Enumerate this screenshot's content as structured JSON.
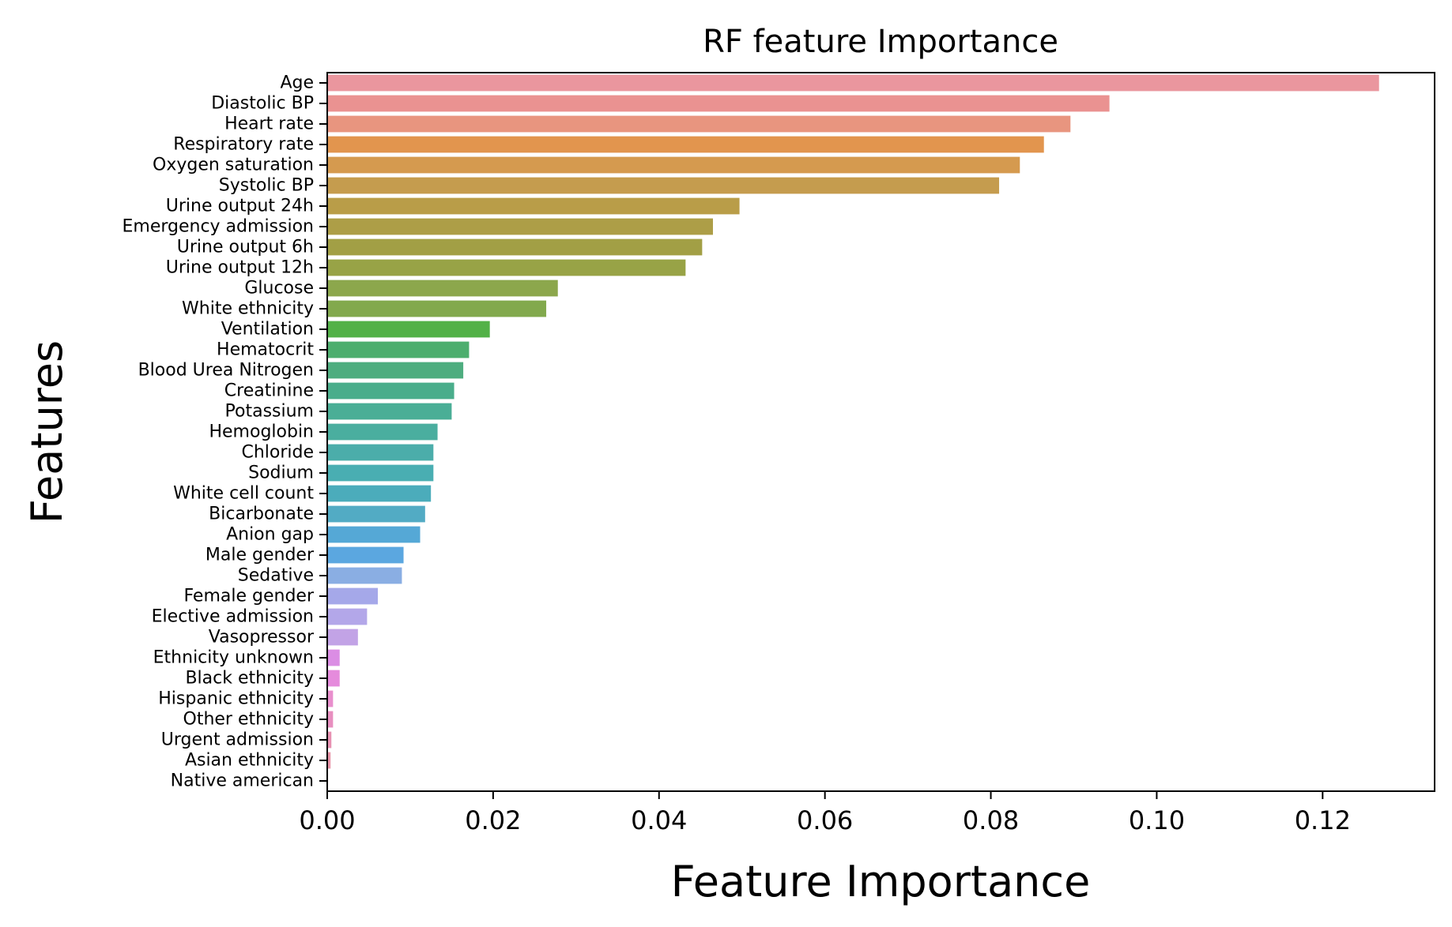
{
  "chart_data": {
    "type": "bar",
    "orientation": "horizontal",
    "title": "RF feature Importance",
    "xlabel": "Feature Importance",
    "ylabel": "Features",
    "xlim": [
      0,
      0.1335
    ],
    "xticks": [
      "0.00",
      "0.02",
      "0.04",
      "0.06",
      "0.08",
      "0.10",
      "0.12"
    ],
    "grid": false,
    "legend": "none",
    "categories": [
      "Age",
      "Diastolic BP",
      "Heart rate",
      "Respiratory rate",
      "Oxygen saturation",
      "Systolic BP",
      "Urine output 24h",
      "Emergency admission",
      "Urine output 6h",
      "Urine output 12h",
      "Glucose",
      "White ethnicity",
      "Ventilation",
      "Hematocrit",
      "Blood Urea Nitrogen",
      "Creatinine",
      "Potassium",
      "Hemoglobin",
      "Chloride",
      "Sodium",
      "White cell count",
      "Bicarbonate",
      "Anion gap",
      "Male gender",
      "Sedative",
      "Female gender",
      "Elective admission",
      "Vasopressor",
      "Ethnicity unknown",
      "Black ethnicity",
      "Hispanic ethnicity",
      "Other ethnicity",
      "Urgent admission",
      "Asian ethnicity",
      "Native american"
    ],
    "values": [
      0.1268,
      0.0943,
      0.0896,
      0.0864,
      0.0835,
      0.081,
      0.0497,
      0.0465,
      0.0452,
      0.0432,
      0.0278,
      0.0264,
      0.0196,
      0.0171,
      0.0164,
      0.0153,
      0.015,
      0.0133,
      0.0128,
      0.0128,
      0.0125,
      0.0118,
      0.0112,
      0.0092,
      0.009,
      0.0061,
      0.0048,
      0.0037,
      0.0015,
      0.0015,
      0.0007,
      0.0007,
      0.0005,
      0.0004,
      0.0001
    ],
    "colors": [
      "#ea969e",
      "#ea9291",
      "#e8957f",
      "#e2954e",
      "#d59a4f",
      "#c59c4e",
      "#b99d48",
      "#ad9e47",
      "#a29f45",
      "#98a346",
      "#8ca74c",
      "#82a94d",
      "#52b147",
      "#4dae6e",
      "#4ead7f",
      "#4aad8b",
      "#4aae96",
      "#4aae9f",
      "#4badaa",
      "#49aeb2",
      "#4bacbb",
      "#52abc4",
      "#55a8d6",
      "#5ba7e0",
      "#8aaee3",
      "#a5a8e9",
      "#b3a7e9",
      "#c2a3e6",
      "#db8de4",
      "#e58bdc",
      "#e98fcd",
      "#e88fc0",
      "#e891b2",
      "#e792a6",
      "#e7959f"
    ]
  }
}
